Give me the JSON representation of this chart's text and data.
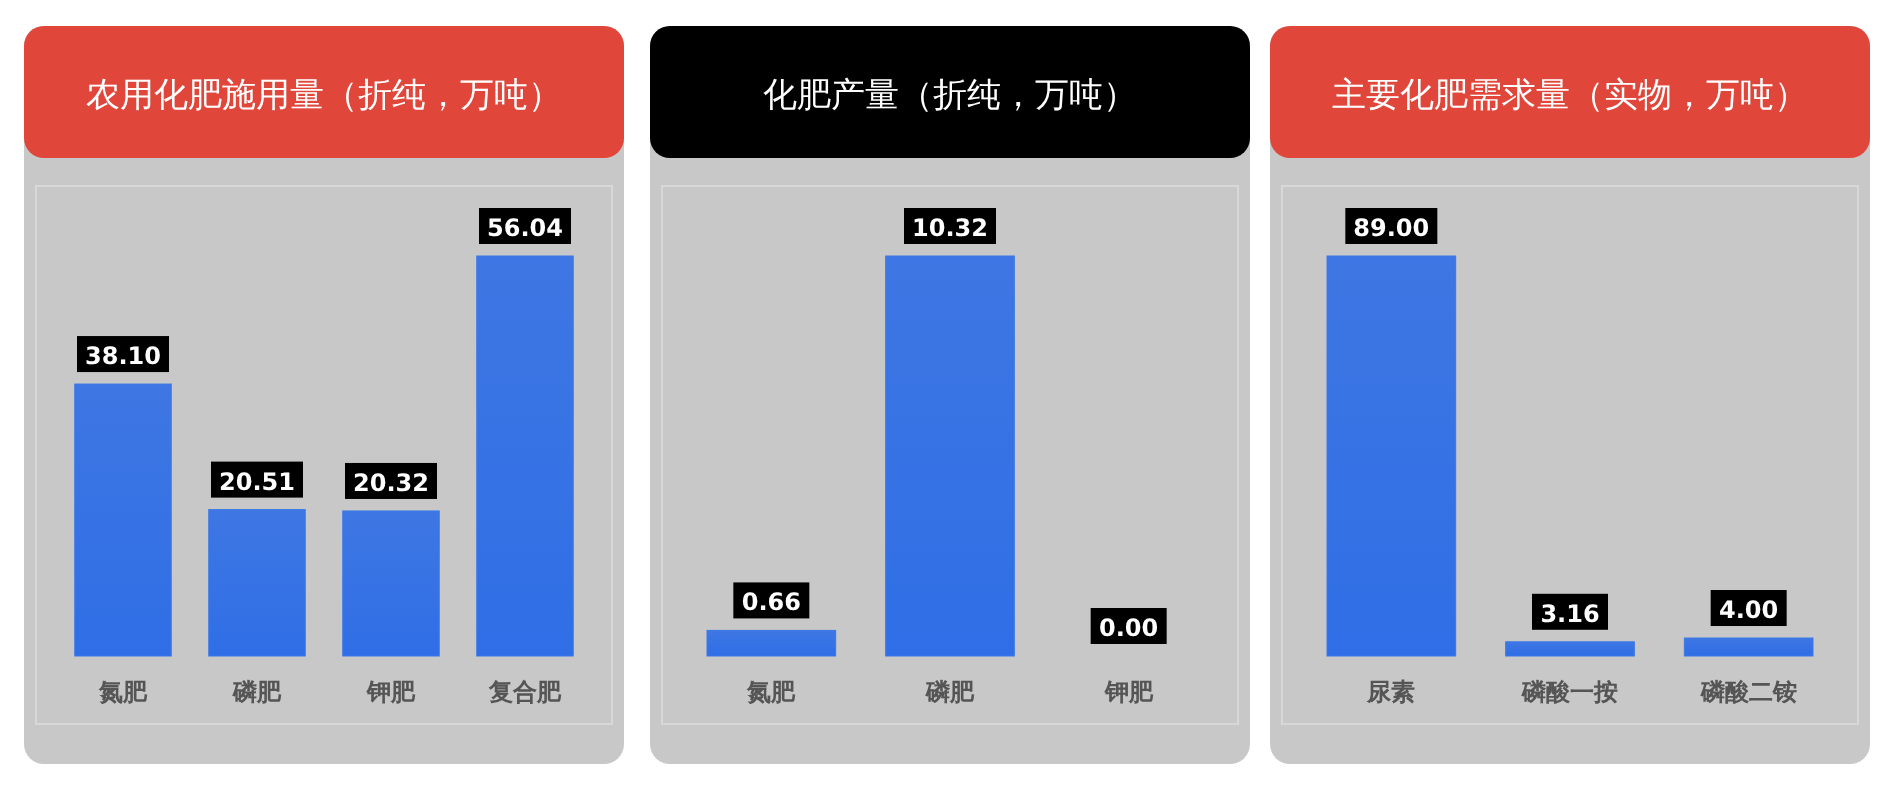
{
  "chart_data": [
    {
      "type": "bar",
      "title": "农用化肥施用量（折纯，万吨）",
      "categories": [
        "氮肥",
        "磷肥",
        "钾肥",
        "复合肥"
      ],
      "values": [
        38.1,
        20.51,
        20.32,
        56.04
      ],
      "value_labels": [
        "38.10",
        "20.51",
        "20.32",
        "56.04"
      ],
      "color": "#2f6ee6"
    },
    {
      "type": "bar",
      "title": "化肥产量（折纯，万吨）",
      "categories": [
        "氮肥",
        "磷肥",
        "钾肥"
      ],
      "values": [
        0.66,
        10.32,
        0.0
      ],
      "value_labels": [
        "0.66",
        "10.32",
        "0.00"
      ],
      "color": "#2f6ee6"
    },
    {
      "type": "bar",
      "title": "主要化肥需求量（实物，万吨）",
      "categories": [
        "尿素",
        "磷酸一按",
        "磷酸二铵"
      ],
      "values": [
        89.0,
        3.16,
        4.0
      ],
      "value_labels": [
        "89.00",
        "3.16",
        "4.00"
      ],
      "color": "#2f6ee6"
    }
  ]
}
